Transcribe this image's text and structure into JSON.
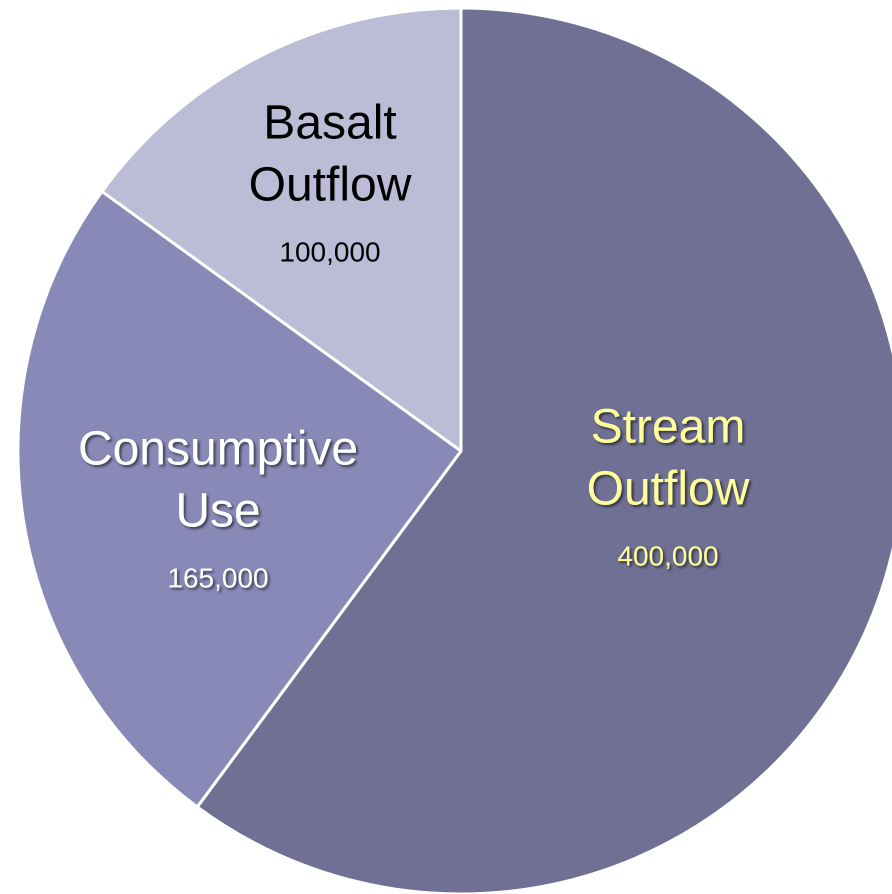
{
  "chart_data": {
    "type": "pie",
    "title": "",
    "start_angle_deg": 0,
    "direction": "clockwise",
    "slices": [
      {
        "id": "stream-outflow",
        "label_lines": [
          "Stream",
          "Outflow"
        ],
        "value": 400000,
        "value_label": "400,000",
        "color": "#6f7094",
        "text_color": "#ffff99",
        "text_shadow": true
      },
      {
        "id": "consumptive-use",
        "label_lines": [
          "Consumptive",
          "Use"
        ],
        "value": 165000,
        "value_label": "165,000",
        "color": "#8889b6",
        "text_color": "#ffffff",
        "text_shadow": true
      },
      {
        "id": "basalt-outflow",
        "label_lines": [
          "Basalt",
          "Outflow"
        ],
        "value": 100000,
        "value_label": "100,000",
        "color": "#bcbcd6",
        "text_color": "#000000",
        "text_shadow": false
      }
    ],
    "slice_border_color": "#ffffff",
    "legend": "none"
  }
}
